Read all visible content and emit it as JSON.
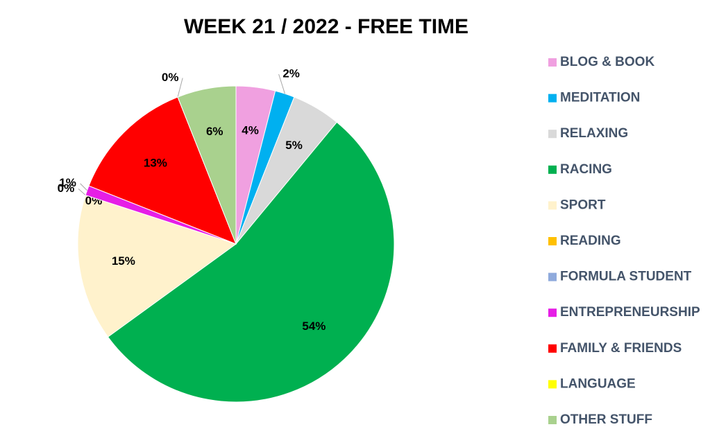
{
  "chart_data": {
    "type": "pie",
    "title": "WEEK 21 / 2022 - FREE TIME",
    "categories": [
      "BLOG & BOOK",
      "MEDITATION",
      "RELAXING",
      "RACING",
      "SPORT",
      "READING",
      "FORMULA STUDENT",
      "ENTREPRENEURSHIP",
      "FAMILY & FRIENDS",
      "LANGUAGE",
      "OTHER STUFF"
    ],
    "values": [
      4,
      2,
      5,
      54,
      15,
      0,
      0,
      1,
      13,
      0,
      6
    ],
    "value_labels": [
      "4%",
      "2%",
      "5%",
      "54%",
      "15%",
      "0%",
      "0%",
      "1%",
      "13%",
      "0%",
      "6%"
    ],
    "colors": [
      "#f0a0e0",
      "#00b0f0",
      "#d9d9d9",
      "#00b050",
      "#fff2cc",
      "#ffc000",
      "#8faadc",
      "#e61ee6",
      "#ff0000",
      "#ffff00",
      "#a9d18e"
    ],
    "legend": "right"
  }
}
